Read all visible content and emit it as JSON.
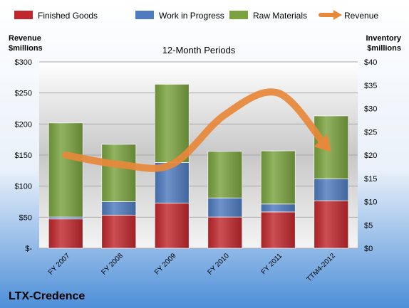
{
  "chart_data": {
    "type": "bar",
    "stacked": true,
    "title": "12-Month Periods",
    "company": "LTX-Credence",
    "left_axis_title": [
      "Revenue",
      "$millions"
    ],
    "right_axis_title": [
      "Inventory",
      "$millions"
    ],
    "categories": [
      "FY 2007",
      "FY 2008",
      "FY 2009",
      "FY 2010",
      "FY 2011",
      "TTM4-2012"
    ],
    "left_ylim": [
      0,
      300
    ],
    "left_ticks": [
      "$-",
      "$50",
      "$100",
      "$150",
      "$200",
      "$250",
      "$300"
    ],
    "right_ylim": [
      0,
      40
    ],
    "right_ticks": [
      "$0",
      "$5",
      "$10",
      "$15",
      "$20",
      "$25",
      "$30",
      "$35",
      "$40"
    ],
    "series": [
      {
        "name": "Finished Goods",
        "axis": "right",
        "color": "#c0282d",
        "values": [
          6.3,
          7.1,
          9.7,
          6.7,
          7.8,
          10.2
        ]
      },
      {
        "name": "Work in Progress",
        "axis": "right",
        "color": "#4f7bbf",
        "values": [
          0.4,
          2.9,
          8.7,
          4.1,
          1.7,
          4.7
        ]
      },
      {
        "name": "Raw Materials",
        "axis": "right",
        "color": "#7aa33f",
        "values": [
          20.2,
          12.3,
          16.8,
          10.0,
          11.4,
          13.5
        ]
      },
      {
        "name": "Revenue",
        "axis": "left",
        "type": "line",
        "color": "#e8883a",
        "values": [
          150,
          135,
          135,
          215,
          250,
          155
        ]
      }
    ],
    "grid": true,
    "legend": "top"
  }
}
